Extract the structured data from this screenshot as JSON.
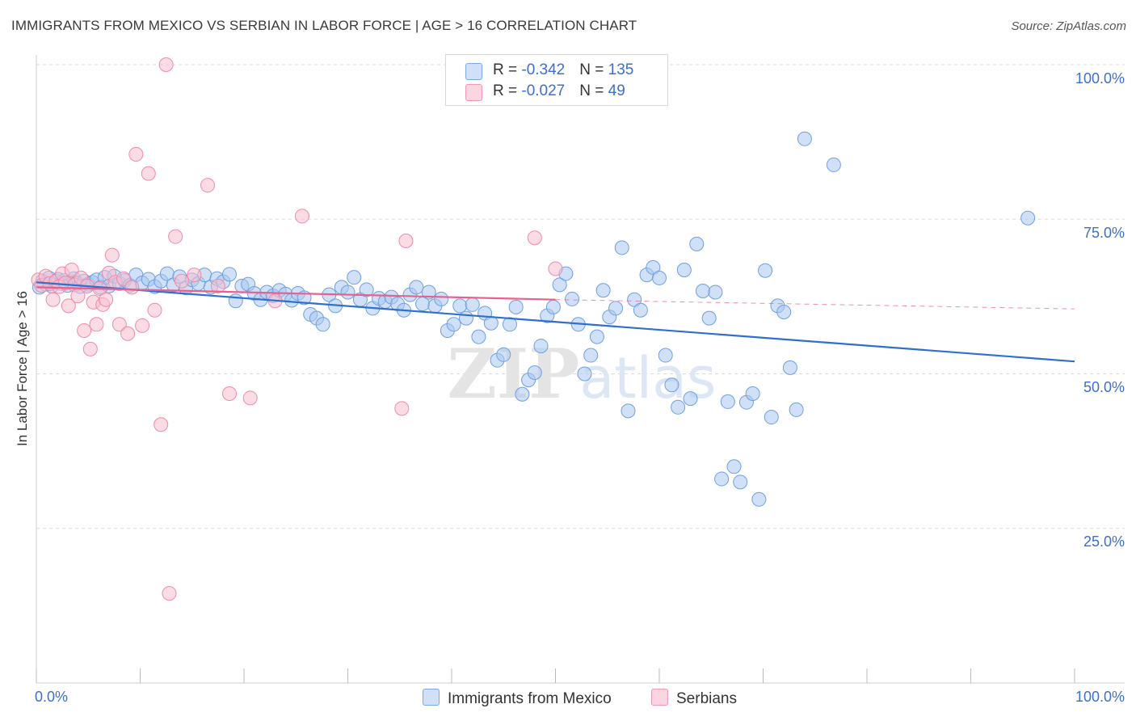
{
  "title": "IMMIGRANTS FROM MEXICO VS SERBIAN IN LABOR FORCE | AGE > 16 CORRELATION CHART",
  "source": "Source: ZipAtlas.com",
  "watermark": "ZIPatlas",
  "legend": {
    "rows": [
      {
        "r_label": "R = ",
        "r_value": "-0.342",
        "n_label": "N = ",
        "n_value": "135",
        "color": "#a9c8f0",
        "stroke": "#6f9fe0"
      },
      {
        "r_label": "R = ",
        "r_value": "-0.027",
        "n_label": "N = ",
        "n_value": "49",
        "color": "#f8c0d0",
        "stroke": "#ee8aa8"
      }
    ]
  },
  "chart_data": {
    "type": "scatter",
    "title": "IMMIGRANTS FROM MEXICO VS SERBIAN IN LABOR FORCE | AGE > 16 CORRELATION CHART",
    "xlabel": "",
    "ylabel": "In Labor Force | Age > 16",
    "xlim": [
      0,
      100
    ],
    "ylim": [
      0,
      100
    ],
    "x_tick_labels": [
      "0.0%",
      "100.0%"
    ],
    "y_ticks": [
      25,
      50,
      75,
      100
    ],
    "y_tick_labels": [
      "25.0%",
      "50.0%",
      "75.0%",
      "100.0%"
    ],
    "grid": true,
    "legend_position": "top-center",
    "series": [
      {
        "name": "Immigrants from Mexico",
        "color": "#a9c8f0",
        "stroke": "#6f9fe0",
        "trend": {
          "x": [
            0,
            100
          ],
          "y": [
            64.8,
            52.0
          ],
          "color": "#2e6fd0"
        },
        "points": [
          [
            0.3,
            64.0
          ],
          [
            0.6,
            65.0
          ],
          [
            0.9,
            64.5
          ],
          [
            1.2,
            65.5
          ],
          [
            1.5,
            64.2
          ],
          [
            1.8,
            64.8
          ],
          [
            2.1,
            65.3
          ],
          [
            2.4,
            64.6
          ],
          [
            2.7,
            65.1
          ],
          [
            3.0,
            64.3
          ],
          [
            3.3,
            64.9
          ],
          [
            3.6,
            65.4
          ],
          [
            3.9,
            64.7
          ],
          [
            4.2,
            64.1
          ],
          [
            4.6,
            65.0
          ],
          [
            5.0,
            64.5
          ],
          [
            5.4,
            64.8
          ],
          [
            5.8,
            65.2
          ],
          [
            6.2,
            64.0
          ],
          [
            6.6,
            65.6
          ],
          [
            7.0,
            64.2
          ],
          [
            7.5,
            65.8
          ],
          [
            8.0,
            64.6
          ],
          [
            8.5,
            65.1
          ],
          [
            9.0,
            64.3
          ],
          [
            9.6,
            66.0
          ],
          [
            10.2,
            64.7
          ],
          [
            10.8,
            65.3
          ],
          [
            11.4,
            64.1
          ],
          [
            12.0,
            65.0
          ],
          [
            12.6,
            66.2
          ],
          [
            13.2,
            64.4
          ],
          [
            13.8,
            65.7
          ],
          [
            14.4,
            63.9
          ],
          [
            15.0,
            65.2
          ],
          [
            15.6,
            64.6
          ],
          [
            16.2,
            66.0
          ],
          [
            16.8,
            64.0
          ],
          [
            17.4,
            65.4
          ],
          [
            18.0,
            64.9
          ],
          [
            18.6,
            66.1
          ],
          [
            19.2,
            61.8
          ],
          [
            19.8,
            64.2
          ],
          [
            20.4,
            64.5
          ],
          [
            21.0,
            63.0
          ],
          [
            21.6,
            62.0
          ],
          [
            22.2,
            63.2
          ],
          [
            22.8,
            62.6
          ],
          [
            23.4,
            63.5
          ],
          [
            24.0,
            62.9
          ],
          [
            24.6,
            61.9
          ],
          [
            25.2,
            63.0
          ],
          [
            25.8,
            62.3
          ],
          [
            26.4,
            59.6
          ],
          [
            27.0,
            59.0
          ],
          [
            27.6,
            58.0
          ],
          [
            28.2,
            62.8
          ],
          [
            28.8,
            61.0
          ],
          [
            29.4,
            64.0
          ],
          [
            30.0,
            63.2
          ],
          [
            30.6,
            65.6
          ],
          [
            31.2,
            62.0
          ],
          [
            31.8,
            63.6
          ],
          [
            32.4,
            60.6
          ],
          [
            33.0,
            62.2
          ],
          [
            33.6,
            61.7
          ],
          [
            34.2,
            62.4
          ],
          [
            34.8,
            61.3
          ],
          [
            35.4,
            60.3
          ],
          [
            36.0,
            62.8
          ],
          [
            36.6,
            64.0
          ],
          [
            37.2,
            61.3
          ],
          [
            37.8,
            63.2
          ],
          [
            38.4,
            61.0
          ],
          [
            39.0,
            62.1
          ],
          [
            39.6,
            57.0
          ],
          [
            40.2,
            58.0
          ],
          [
            40.8,
            61.0
          ],
          [
            41.4,
            59.0
          ],
          [
            42.0,
            61.2
          ],
          [
            42.6,
            56.0
          ],
          [
            43.2,
            59.8
          ],
          [
            43.8,
            58.2
          ],
          [
            44.4,
            52.2
          ],
          [
            45.0,
            53.1
          ],
          [
            45.6,
            58.0
          ],
          [
            46.2,
            60.8
          ],
          [
            46.8,
            46.7
          ],
          [
            47.4,
            49.0
          ],
          [
            48.0,
            50.2
          ],
          [
            48.6,
            54.5
          ],
          [
            49.2,
            59.4
          ],
          [
            49.8,
            60.8
          ],
          [
            50.4,
            64.4
          ],
          [
            51.0,
            66.2
          ],
          [
            51.6,
            62.1
          ],
          [
            52.2,
            58.0
          ],
          [
            52.8,
            50.0
          ],
          [
            53.4,
            53.0
          ],
          [
            54.0,
            56.0
          ],
          [
            54.6,
            63.5
          ],
          [
            55.2,
            59.2
          ],
          [
            55.8,
            60.6
          ],
          [
            56.4,
            70.4
          ],
          [
            57.0,
            44.0
          ],
          [
            57.6,
            62.0
          ],
          [
            58.2,
            60.3
          ],
          [
            58.8,
            66.0
          ],
          [
            59.4,
            67.2
          ],
          [
            60.0,
            65.5
          ],
          [
            60.6,
            53.0
          ],
          [
            61.2,
            48.2
          ],
          [
            61.8,
            44.6
          ],
          [
            62.4,
            66.8
          ],
          [
            63.0,
            46.0
          ],
          [
            63.6,
            71.0
          ],
          [
            64.2,
            63.4
          ],
          [
            64.8,
            59.0
          ],
          [
            65.4,
            63.2
          ],
          [
            66.0,
            33.0
          ],
          [
            66.6,
            45.5
          ],
          [
            67.2,
            35.0
          ],
          [
            67.8,
            32.5
          ],
          [
            68.4,
            45.4
          ],
          [
            69.0,
            46.8
          ],
          [
            69.6,
            29.7
          ],
          [
            70.2,
            66.7
          ],
          [
            70.8,
            43.0
          ],
          [
            71.4,
            61.0
          ],
          [
            72.0,
            60.0
          ],
          [
            72.6,
            51.0
          ],
          [
            73.2,
            44.2
          ],
          [
            74.0,
            88.0
          ],
          [
            76.8,
            83.8
          ],
          [
            95.5,
            75.2
          ]
        ]
      },
      {
        "name": "Serbians",
        "color": "#f8c0d0",
        "stroke": "#ee8aa8",
        "trend": {
          "x": [
            0,
            50
          ],
          "y": [
            64.0,
            62.0
          ],
          "dashed_to": [
            100,
            60.5
          ],
          "color": "#e8608c"
        },
        "points": [
          [
            0.2,
            65.2
          ],
          [
            0.5,
            64.3
          ],
          [
            0.9,
            65.8
          ],
          [
            1.3,
            64.6
          ],
          [
            1.6,
            62.0
          ],
          [
            1.9,
            65.0
          ],
          [
            2.2,
            64.1
          ],
          [
            2.5,
            66.2
          ],
          [
            2.8,
            64.7
          ],
          [
            3.1,
            61.0
          ],
          [
            3.4,
            66.8
          ],
          [
            3.7,
            64.4
          ],
          [
            4.0,
            62.6
          ],
          [
            4.3,
            65.5
          ],
          [
            4.6,
            57.0
          ],
          [
            4.9,
            64.2
          ],
          [
            5.2,
            54.0
          ],
          [
            5.5,
            61.6
          ],
          [
            5.8,
            58.0
          ],
          [
            6.1,
            63.8
          ],
          [
            6.4,
            61.2
          ],
          [
            6.7,
            62.0
          ],
          [
            7.0,
            66.3
          ],
          [
            7.3,
            69.2
          ],
          [
            7.6,
            64.8
          ],
          [
            8.0,
            58.0
          ],
          [
            8.4,
            65.4
          ],
          [
            8.8,
            56.5
          ],
          [
            9.2,
            64.0
          ],
          [
            9.6,
            85.5
          ],
          [
            10.2,
            57.8
          ],
          [
            10.8,
            82.4
          ],
          [
            11.4,
            60.3
          ],
          [
            12.0,
            41.8
          ],
          [
            12.5,
            100.0
          ],
          [
            12.8,
            14.5
          ],
          [
            13.4,
            72.2
          ],
          [
            14.0,
            65.0
          ],
          [
            15.2,
            66.0
          ],
          [
            16.5,
            80.5
          ],
          [
            17.5,
            64.2
          ],
          [
            18.6,
            46.8
          ],
          [
            20.6,
            46.1
          ],
          [
            23.0,
            61.8
          ],
          [
            25.6,
            75.5
          ],
          [
            35.2,
            44.4
          ],
          [
            35.6,
            71.5
          ],
          [
            48.0,
            72.0
          ],
          [
            50.0,
            67.0
          ]
        ]
      }
    ]
  },
  "bottom_legend": {
    "items": [
      {
        "label": "Immigrants from Mexico"
      },
      {
        "label": "Serbians"
      }
    ]
  }
}
